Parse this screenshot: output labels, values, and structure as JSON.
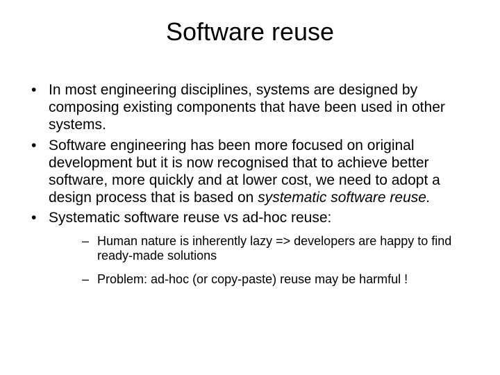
{
  "title": "Software reuse",
  "bullets": {
    "b1": "In most engineering disciplines, systems are designed by composing existing components that have been used in other systems.",
    "b2_pre": "Software engineering has been more focused on original development but it is now recognised that to achieve better software, more quickly and at lower cost, we need to adopt a design process that is based on ",
    "b2_italic": "systematic software reuse.",
    "b3": "Systematic software reuse vs ad-hoc reuse:"
  },
  "sub": {
    "s1": "Human nature is inherently lazy => developers are happy to find ready-made solutions",
    "s2": "Problem: ad-hoc (or copy-paste) reuse may be harmful !"
  },
  "styling": {
    "background_color": "#ffffff",
    "text_color": "#000000",
    "title_fontsize": 36,
    "bullet_fontsize": 21,
    "subbullet_fontsize": 18,
    "font_family": "Arial"
  }
}
